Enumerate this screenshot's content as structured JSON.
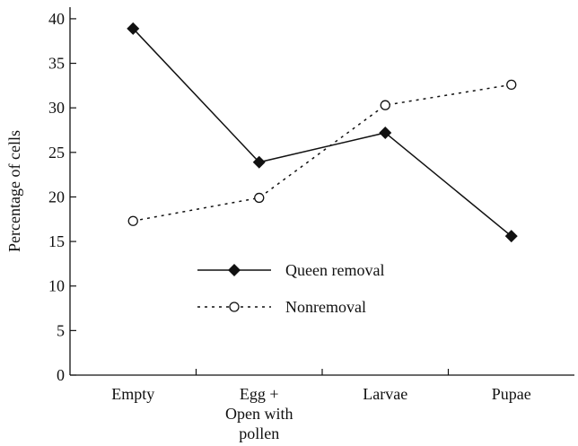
{
  "chart_data": {
    "type": "line",
    "y_label": "Percentage of cells",
    "categories": [
      "Empty",
      "Egg +\nOpen with\npollen",
      "Larvae",
      "Pupae"
    ],
    "series": [
      {
        "name": "Queen removal",
        "color": "#111111",
        "marker": "diamond",
        "linestyle": "solid",
        "values": [
          38.9,
          23.9,
          27.2,
          15.6
        ]
      },
      {
        "name": "Nonremoval",
        "color": "#111111",
        "marker": "open-circle",
        "linestyle": "dotted",
        "values": [
          17.3,
          19.9,
          30.3,
          32.6
        ]
      }
    ],
    "ylim": [
      0,
      41.3
    ],
    "yticks": [
      0,
      5,
      10,
      15,
      20,
      25,
      30,
      35,
      40
    ]
  }
}
